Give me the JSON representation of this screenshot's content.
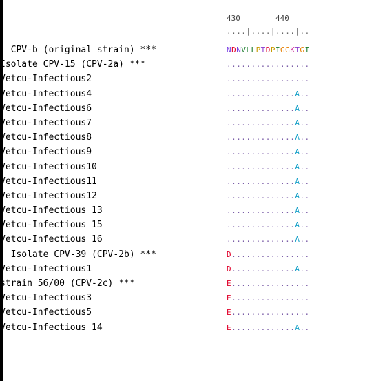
{
  "ruler": {
    "labels": [
      "430",
      "440"
    ],
    "ticks": "....|....|....|.."
  },
  "colors": {
    "N": "#7b3fe4",
    "D": "#e0002a",
    "V": "#1a7b2b",
    "L": "#1a7b2b",
    "P": "#c79a00",
    "T": "#8a3ccf",
    "I": "#1a7b2b",
    "G": "#e67e00",
    "K": "#d03aa0",
    "A": "#16a0c8",
    "E": "#e0002a",
    "dot": "#7b5da8"
  },
  "sequences": [
    {
      "name": "  CPV-b (original strain) ***",
      "seq": "NDNVLLPTDPIGGKTGI"
    },
    {
      "name": "Isolate CPV-15 (CPV-2a) ***",
      "seq": "................."
    },
    {
      "name": "Vetcu-Infectious2",
      "seq": "................."
    },
    {
      "name": "Vetcu-Infectious4",
      "seq": "..............A.."
    },
    {
      "name": "Vetcu-Infectious6",
      "seq": "..............A.."
    },
    {
      "name": "Vetcu-Infectious7",
      "seq": "..............A.."
    },
    {
      "name": "Vetcu-Infectious8",
      "seq": "..............A.."
    },
    {
      "name": "Vetcu-Infectious9",
      "seq": "..............A.."
    },
    {
      "name": "Vetcu-Infectious10",
      "seq": "..............A.."
    },
    {
      "name": "Vetcu-Infectious11",
      "seq": "..............A.."
    },
    {
      "name": "Vetcu-Infectious12",
      "seq": "..............A.."
    },
    {
      "name": "Vetcu-Infectious 13",
      "seq": "..............A.."
    },
    {
      "name": "Vetcu-Infectious 15",
      "seq": "..............A.."
    },
    {
      "name": "Vetcu-Infectious 16",
      "seq": "..............A.."
    },
    {
      "name": "  Isolate CPV-39 (CPV-2b) ***",
      "seq": "D................"
    },
    {
      "name": "Vetcu-Infectious1",
      "seq": "D.............A.."
    },
    {
      "name": "strain 56/00 (CPV-2c) ***",
      "seq": "E................"
    },
    {
      "name": "Vetcu-Infectious3",
      "seq": "E................"
    },
    {
      "name": "Vetcu-Infectious5",
      "seq": "E................"
    },
    {
      "name": "Vetcu-Infectious 14",
      "seq": "E.............A.."
    }
  ]
}
